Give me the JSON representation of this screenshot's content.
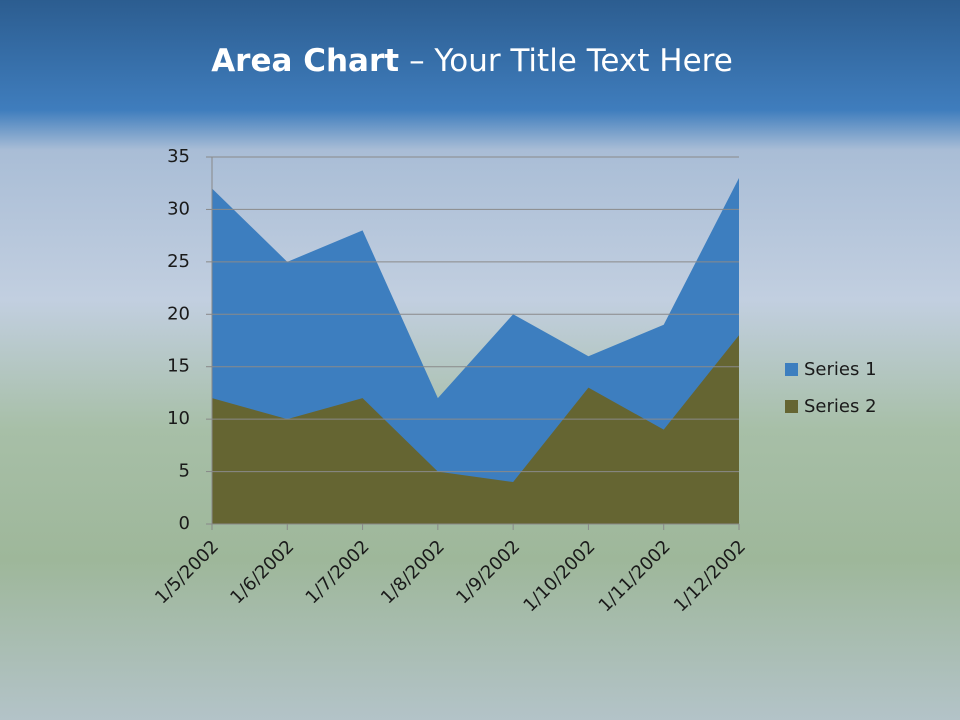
{
  "chart_data": {
    "type": "area",
    "title": {
      "bold": "Area Chart",
      "text": "– Your Title Text Here"
    },
    "categories": [
      "1/5/2002",
      "1/6/2002",
      "1/7/2002",
      "1/8/2002",
      "1/9/2002",
      "1/10/2002",
      "1/11/2002",
      "1/12/2002"
    ],
    "series": [
      {
        "name": "Series 1",
        "color": "#3d7ebf",
        "values": [
          32,
          25,
          28,
          12,
          20,
          16,
          19,
          33
        ]
      },
      {
        "name": "Series 2",
        "color": "#656532",
        "values": [
          12,
          10,
          12,
          5,
          4,
          13,
          9,
          18
        ]
      }
    ],
    "ylim": [
      0,
      35
    ],
    "yticks": [
      0,
      5,
      10,
      15,
      20,
      25,
      30,
      35
    ],
    "grid": true,
    "legend": "right"
  }
}
